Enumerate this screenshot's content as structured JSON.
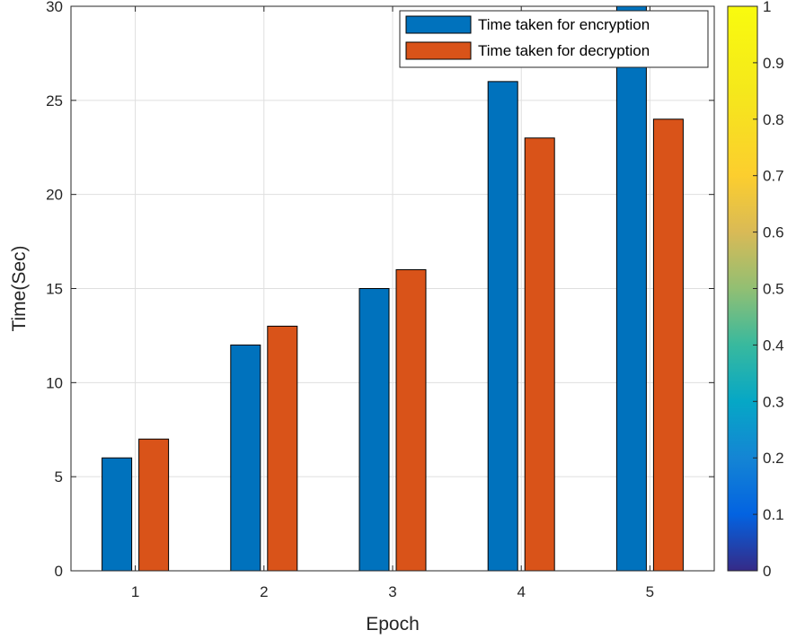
{
  "chart_data": {
    "type": "bar",
    "title": "",
    "xlabel": "Epoch",
    "ylabel": "Time(Sec)",
    "categories": [
      "1",
      "2",
      "3",
      "4",
      "5"
    ],
    "ylim": [
      0,
      30
    ],
    "yticks": [
      "0",
      "5",
      "10",
      "15",
      "20",
      "25",
      "30"
    ],
    "grid": true,
    "legend_position": "top-right",
    "series": [
      {
        "name": "Time taken for encryption",
        "color": "#0072BD",
        "values": [
          6,
          12,
          15,
          26,
          30
        ]
      },
      {
        "name": "Time taken for decryption",
        "color": "#D95319",
        "values": [
          7,
          13,
          16,
          23,
          24
        ]
      }
    ],
    "colorbar": {
      "colormap": "parula",
      "range": [
        0,
        1
      ],
      "ticks": [
        "0",
        "0.1",
        "0.2",
        "0.3",
        "0.4",
        "0.5",
        "0.6",
        "0.7",
        "0.8",
        "0.9",
        "1"
      ]
    }
  }
}
